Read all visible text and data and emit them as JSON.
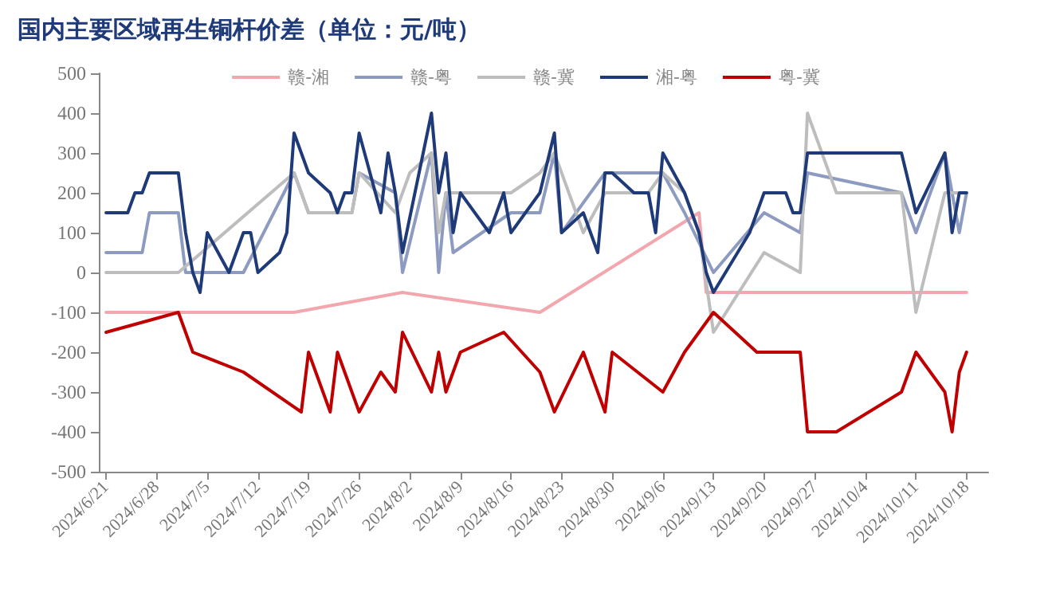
{
  "chart_data": {
    "type": "line",
    "title": "国内主要区域再生铜杆价差（单位：元/吨）",
    "xlim": [
      "2024-06-20",
      "2024-10-21"
    ],
    "xticks": [
      {
        "value": "2024-06-21",
        "label": "2024/6/21"
      },
      {
        "value": "2024-06-28",
        "label": "2024/6/28"
      },
      {
        "value": "2024-07-05",
        "label": "2024/7/5"
      },
      {
        "value": "2024-07-12",
        "label": "2024/7/12"
      },
      {
        "value": "2024-07-19",
        "label": "2024/7/19"
      },
      {
        "value": "2024-07-26",
        "label": "2024/7/26"
      },
      {
        "value": "2024-08-02",
        "label": "2024/8/2"
      },
      {
        "value": "2024-08-09",
        "label": "2024/8/9"
      },
      {
        "value": "2024-08-16",
        "label": "2024/8/16"
      },
      {
        "value": "2024-08-23",
        "label": "2024/8/23"
      },
      {
        "value": "2024-08-30",
        "label": "2024/8/30"
      },
      {
        "value": "2024-09-06",
        "label": "2024/9/6"
      },
      {
        "value": "2024-09-13",
        "label": "2024/9/13"
      },
      {
        "value": "2024-09-20",
        "label": "2024/9/20"
      },
      {
        "value": "2024-09-27",
        "label": "2024/9/27"
      },
      {
        "value": "2024-10-04",
        "label": "2024/10/4"
      },
      {
        "value": "2024-10-11",
        "label": "2024/10/11"
      },
      {
        "value": "2024-10-18",
        "label": "2024/10/18"
      }
    ],
    "ylim": [
      -500,
      500
    ],
    "yticks": [
      -500,
      -400,
      -300,
      -200,
      -100,
      0,
      100,
      200,
      300,
      400,
      500
    ],
    "grid": false,
    "legend": "top",
    "marker": "none",
    "series": [
      {
        "name": "赣-湘",
        "color": "#f2a7ae",
        "x": [
          "2024-06-21",
          "2024-07-01",
          "2024-07-17",
          "2024-08-01",
          "2024-08-20",
          "2024-09-11",
          "2024-09-12",
          "2024-09-30",
          "2024-10-18"
        ],
        "values": [
          -100,
          -100,
          -100,
          -50,
          -100,
          150,
          -50,
          -50,
          -50
        ]
      },
      {
        "name": "赣-粤",
        "color": "#8e9bc0",
        "x": [
          "2024-06-21",
          "2024-06-26",
          "2024-06-27",
          "2024-07-01",
          "2024-07-02",
          "2024-07-10",
          "2024-07-17",
          "2024-07-19",
          "2024-07-25",
          "2024-07-26",
          "2024-07-31",
          "2024-08-01",
          "2024-08-05",
          "2024-08-06",
          "2024-08-07",
          "2024-08-08",
          "2024-08-16",
          "2024-08-20",
          "2024-08-22",
          "2024-08-23",
          "2024-08-29",
          "2024-09-06",
          "2024-09-09",
          "2024-09-13",
          "2024-09-20",
          "2024-09-25",
          "2024-09-26",
          "2024-10-09",
          "2024-10-11",
          "2024-10-15",
          "2024-10-17",
          "2024-10-18"
        ],
        "values": [
          50,
          50,
          150,
          150,
          0,
          0,
          250,
          150,
          150,
          250,
          200,
          0,
          300,
          0,
          200,
          50,
          150,
          150,
          300,
          100,
          250,
          250,
          150,
          0,
          150,
          100,
          250,
          200,
          100,
          300,
          100,
          200
        ]
      },
      {
        "name": "赣-冀",
        "color": "#bdbdbd",
        "x": [
          "2024-06-21",
          "2024-07-01",
          "2024-07-17",
          "2024-07-19",
          "2024-07-25",
          "2024-07-26",
          "2024-07-31",
          "2024-08-02",
          "2024-08-05",
          "2024-08-06",
          "2024-08-07",
          "2024-08-16",
          "2024-08-20",
          "2024-08-22",
          "2024-08-26",
          "2024-08-29",
          "2024-09-04",
          "2024-09-06",
          "2024-09-09",
          "2024-09-11",
          "2024-09-13",
          "2024-09-20",
          "2024-09-25",
          "2024-09-26",
          "2024-09-30",
          "2024-10-09",
          "2024-10-11",
          "2024-10-15",
          "2024-10-17",
          "2024-10-18"
        ],
        "values": [
          0,
          0,
          250,
          150,
          150,
          250,
          150,
          250,
          300,
          100,
          200,
          200,
          250,
          300,
          100,
          200,
          200,
          250,
          200,
          100,
          -150,
          50,
          0,
          400,
          200,
          200,
          -100,
          200,
          200,
          200
        ]
      },
      {
        "name": "湘-粤",
        "color": "#1f3a78",
        "x": [
          "2024-06-21",
          "2024-06-24",
          "2024-06-25",
          "2024-06-26",
          "2024-06-27",
          "2024-07-01",
          "2024-07-02",
          "2024-07-03",
          "2024-07-04",
          "2024-07-05",
          "2024-07-08",
          "2024-07-10",
          "2024-07-11",
          "2024-07-12",
          "2024-07-15",
          "2024-07-16",
          "2024-07-17",
          "2024-07-19",
          "2024-07-22",
          "2024-07-23",
          "2024-07-24",
          "2024-07-25",
          "2024-07-26",
          "2024-07-29",
          "2024-07-30",
          "2024-07-31",
          "2024-08-01",
          "2024-08-05",
          "2024-08-06",
          "2024-08-07",
          "2024-08-08",
          "2024-08-09",
          "2024-08-13",
          "2024-08-15",
          "2024-08-16",
          "2024-08-20",
          "2024-08-22",
          "2024-08-23",
          "2024-08-26",
          "2024-08-28",
          "2024-08-29",
          "2024-08-30",
          "2024-09-02",
          "2024-09-04",
          "2024-09-05",
          "2024-09-06",
          "2024-09-09",
          "2024-09-11",
          "2024-09-12",
          "2024-09-13",
          "2024-09-18",
          "2024-09-19",
          "2024-09-20",
          "2024-09-23",
          "2024-09-24",
          "2024-09-25",
          "2024-09-26",
          "2024-10-09",
          "2024-10-11",
          "2024-10-15",
          "2024-10-16",
          "2024-10-17",
          "2024-10-18"
        ],
        "values": [
          150,
          150,
          200,
          200,
          250,
          250,
          100,
          0,
          -50,
          100,
          0,
          100,
          100,
          0,
          50,
          100,
          350,
          250,
          200,
          150,
          200,
          200,
          350,
          150,
          300,
          200,
          50,
          400,
          200,
          300,
          100,
          200,
          100,
          200,
          100,
          200,
          350,
          100,
          150,
          50,
          250,
          250,
          200,
          200,
          100,
          300,
          200,
          100,
          0,
          -50,
          100,
          150,
          200,
          200,
          150,
          150,
          300,
          300,
          150,
          300,
          100,
          200,
          200
        ]
      },
      {
        "name": "粤-冀",
        "color": "#c00000",
        "x": [
          "2024-06-21",
          "2024-07-01",
          "2024-07-03",
          "2024-07-10",
          "2024-07-18",
          "2024-07-19",
          "2024-07-22",
          "2024-07-23",
          "2024-07-26",
          "2024-07-29",
          "2024-07-31",
          "2024-08-01",
          "2024-08-05",
          "2024-08-06",
          "2024-08-07",
          "2024-08-09",
          "2024-08-15",
          "2024-08-20",
          "2024-08-22",
          "2024-08-26",
          "2024-08-29",
          "2024-08-30",
          "2024-09-06",
          "2024-09-09",
          "2024-09-13",
          "2024-09-19",
          "2024-09-25",
          "2024-09-26",
          "2024-09-30",
          "2024-10-09",
          "2024-10-11",
          "2024-10-15",
          "2024-10-16",
          "2024-10-17",
          "2024-10-18"
        ],
        "values": [
          -150,
          -100,
          -200,
          -250,
          -350,
          -200,
          -350,
          -200,
          -350,
          -250,
          -300,
          -150,
          -300,
          -200,
          -300,
          -200,
          -150,
          -250,
          -350,
          -200,
          -350,
          -200,
          -300,
          -200,
          -100,
          -200,
          -200,
          -400,
          -400,
          -300,
          -200,
          -300,
          -400,
          -250,
          -200
        ]
      }
    ]
  }
}
